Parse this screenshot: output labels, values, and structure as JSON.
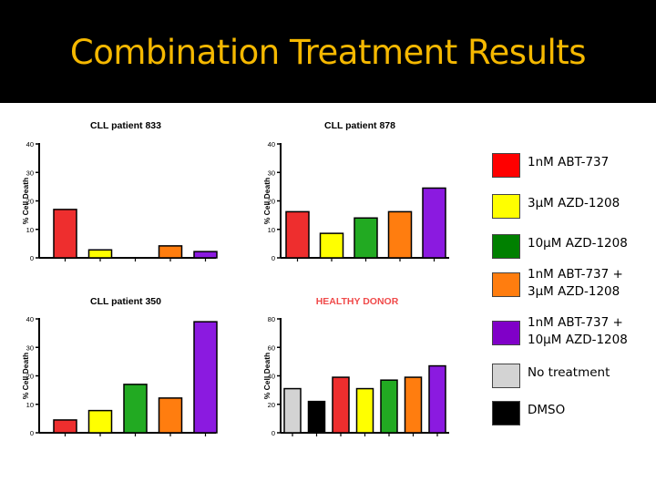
{
  "slide": {
    "title": "Combination Treatment Results"
  },
  "colors": {
    "abt": "#ee2e2e",
    "azd3": "#ffff00",
    "azd10": "#22aa22",
    "combo3": "#ff7d0f",
    "combo10": "#8b1ae0",
    "none": "#d3d3d3",
    "dmso": "#000000",
    "legend_abt": "#ff0000",
    "legend_azd10": "#008000",
    "legend_combo10": "#8000c8"
  },
  "legend": [
    {
      "label": "1nM ABT-737",
      "color": "#ff0000"
    },
    {
      "label": "3µM AZD-1208",
      "color": "#ffff00"
    },
    {
      "label": "10µM AZD-1208",
      "color": "#008000"
    },
    {
      "label": "1nM ABT-737 +\n3µM AZD-1208",
      "color": "#ff7d0f"
    },
    {
      "label": "1nM ABT-737 +\n10µM AZD-1208",
      "color": "#8000c8"
    },
    {
      "label": "No treatment",
      "color": "#d3d3d3"
    },
    {
      "label": "DMSO",
      "color": "#000000"
    }
  ],
  "chart_data": [
    {
      "type": "bar",
      "title": "CLL patient 833",
      "title_color": "#000000",
      "ylabel": "% Cell Death",
      "ylim": [
        0,
        40
      ],
      "yticks": [
        0,
        10,
        20,
        30,
        40
      ],
      "categories": [
        "1nM ABT-737",
        "3µM AZD-1208",
        "10µM AZD-1208",
        "1nM ABT-737 + 3µM AZD-1208",
        "1nM ABT-737 + 10µM AZD-1208"
      ],
      "values": [
        17,
        2.8,
        0,
        4.2,
        2.2
      ],
      "colors": [
        "#ee2e2e",
        "#ffff00",
        "#22aa22",
        "#ff7d0f",
        "#8b1ae0"
      ]
    },
    {
      "type": "bar",
      "title": "CLL patient 878",
      "title_color": "#000000",
      "ylabel": "% Cell Death",
      "ylim": [
        0,
        40
      ],
      "yticks": [
        0,
        10,
        20,
        30,
        40
      ],
      "categories": [
        "1nM ABT-737",
        "3µM AZD-1208",
        "10µM AZD-1208",
        "1nM ABT-737 + 3µM AZD-1208",
        "1nM ABT-737 + 10µM AZD-1208"
      ],
      "values": [
        16.2,
        8.6,
        14,
        16.2,
        24.5
      ],
      "colors": [
        "#ee2e2e",
        "#ffff00",
        "#22aa22",
        "#ff7d0f",
        "#8b1ae0"
      ]
    },
    {
      "type": "bar",
      "title": "CLL patient 350",
      "title_color": "#000000",
      "ylabel": "% Cell Death",
      "ylim": [
        0,
        40
      ],
      "yticks": [
        0,
        10,
        20,
        30,
        40
      ],
      "categories": [
        "1nM ABT-737",
        "3µM AZD-1208",
        "10µM AZD-1208",
        "1nM ABT-737 + 3µM AZD-1208",
        "1nM ABT-737 + 10µM AZD-1208"
      ],
      "values": [
        4.5,
        7.8,
        17,
        12.2,
        39
      ],
      "colors": [
        "#ee2e2e",
        "#ffff00",
        "#22aa22",
        "#ff7d0f",
        "#8b1ae0"
      ]
    },
    {
      "type": "bar",
      "title": "HEALTHY DONOR",
      "title_color": "#f04a4a",
      "ylabel": "% Cell Death",
      "ylim": [
        0,
        80
      ],
      "yticks": [
        0,
        20,
        40,
        60,
        80
      ],
      "categories": [
        "No treatment",
        "DMSO",
        "1nM ABT-737",
        "3µM AZD-1208",
        "10µM AZD-1208",
        "1nM ABT-737 + 3µM AZD-1208",
        "1nM ABT-737 + 10µM AZD-1208"
      ],
      "values": [
        31,
        22,
        39,
        31,
        37,
        39,
        47
      ],
      "colors": [
        "#d3d3d3",
        "#000000",
        "#ee2e2e",
        "#ffff00",
        "#22aa22",
        "#ff7d0f",
        "#8b1ae0"
      ]
    }
  ]
}
